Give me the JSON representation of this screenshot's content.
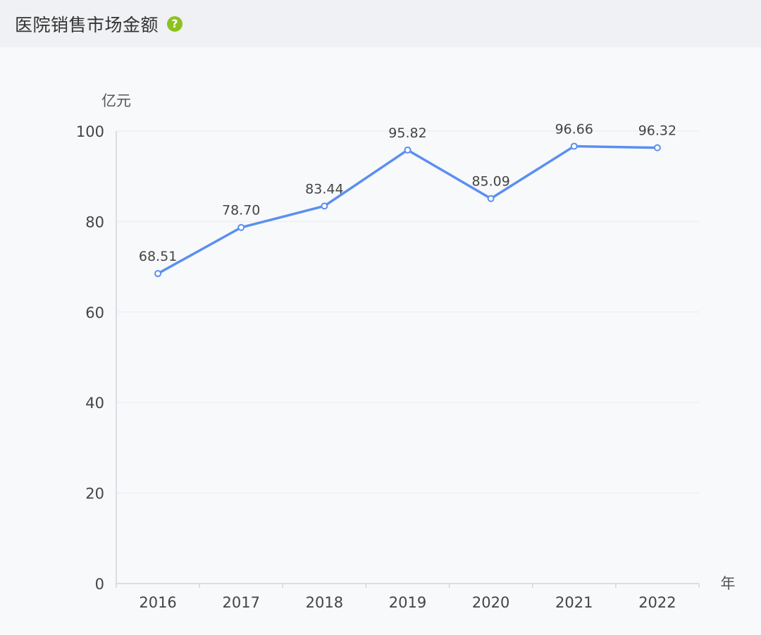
{
  "header": {
    "title": "医院销售市场金额",
    "help_icon": "question-circle-icon"
  },
  "colors": {
    "line": "#5b8ff0",
    "help_icon": "#8cc21f"
  },
  "chart_data": {
    "type": "line",
    "title": "",
    "y_unit": "亿元",
    "x_unit": "年",
    "x": [
      "2016",
      "2017",
      "2018",
      "2019",
      "2020",
      "2021",
      "2022"
    ],
    "series": [
      {
        "values": [
          68.51,
          78.7,
          83.44,
          95.82,
          85.09,
          96.66,
          96.32
        ]
      }
    ],
    "data_labels": [
      "68.51",
      "78.70",
      "83.44",
      "95.82",
      "85.09",
      "96.66",
      "96.32"
    ],
    "ylim": [
      0,
      100
    ],
    "y_ticks": [
      0,
      20,
      40,
      60,
      80,
      100
    ],
    "grid": true,
    "legend": "none"
  }
}
